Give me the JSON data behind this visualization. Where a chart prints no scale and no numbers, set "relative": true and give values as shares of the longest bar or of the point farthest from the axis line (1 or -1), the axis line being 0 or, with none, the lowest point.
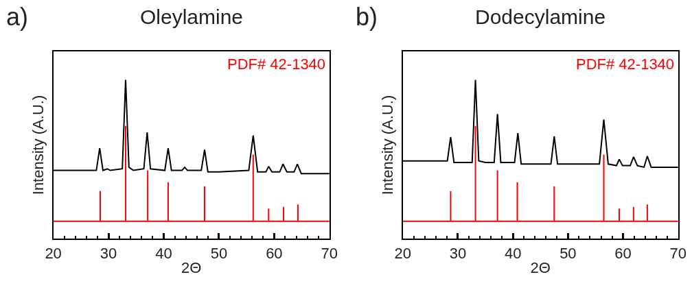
{
  "chart_data": [
    {
      "type": "line",
      "title": "Oleylamine",
      "annotations": [
        "a)"
      ],
      "xlabel": "2Θ",
      "ylabel": "Intensity (A.U.)",
      "relative": true,
      "tick_labels": "x",
      "xlim": [
        20,
        70
      ],
      "xticks": [
        20,
        {
          "value": 22,
          "label": null
        },
        {
          "value": 24,
          "label": null
        },
        {
          "value": 26,
          "label": null
        },
        {
          "value": 28,
          "label": null
        },
        30,
        {
          "value": 32,
          "label": null
        },
        {
          "value": 34,
          "label": null
        },
        {
          "value": 36,
          "label": null
        },
        {
          "value": 38,
          "label": null
        },
        40,
        {
          "value": 42,
          "label": null
        },
        {
          "value": 44,
          "label": null
        },
        {
          "value": 46,
          "label": null
        },
        {
          "value": 48,
          "label": null
        },
        50,
        {
          "value": 52,
          "label": null
        },
        {
          "value": 54,
          "label": null
        },
        {
          "value": 56,
          "label": null
        },
        {
          "value": 58,
          "label": null
        },
        60,
        {
          "value": 62,
          "label": null
        },
        {
          "value": 64,
          "label": null
        },
        {
          "value": 66,
          "label": null
        },
        {
          "value": 68,
          "label": null
        },
        70
      ],
      "series": [
        {
          "color": "#000000",
          "x": [
            20,
            27.8,
            28.4,
            29.0,
            29.8,
            30.3,
            32.5,
            33.1,
            33.7,
            34.5,
            36.4,
            37.0,
            37.6,
            40.2,
            40.8,
            41.4,
            43.3,
            43.8,
            44.3,
            46.8,
            47.4,
            48.0,
            50,
            55.4,
            56.2,
            57.0,
            58.5,
            59.0,
            59.6,
            61.0,
            61.6,
            62.3,
            63.6,
            64.2,
            64.9,
            70
          ],
          "values": [
            0.43,
            0.43,
            0.57,
            0.43,
            0.44,
            0.43,
            0.44,
            1.0,
            0.45,
            0.43,
            0.44,
            0.67,
            0.44,
            0.43,
            0.57,
            0.43,
            0.43,
            0.45,
            0.43,
            0.43,
            0.56,
            0.42,
            0.42,
            0.43,
            0.65,
            0.42,
            0.42,
            0.455,
            0.42,
            0.42,
            0.47,
            0.42,
            0.42,
            0.47,
            0.41,
            0.41
          ]
        },
        {
          "name": "PDF# 42-1340",
          "color": "#ff0000",
          "x": [
            20,
            28.5,
            28.5,
            28.5,
            33.1,
            33.1,
            33.1,
            37.1,
            37.1,
            37.1,
            40.8,
            40.8,
            40.8,
            47.4,
            47.4,
            47.4,
            56.2,
            56.2,
            56.2,
            59.0,
            59.0,
            59.0,
            61.7,
            61.7,
            61.7,
            64.3,
            64.3,
            64.3,
            70
          ],
          "values": [
            0.11,
            0.11,
            0.3,
            0.11,
            0.11,
            0.71,
            0.11,
            0.11,
            0.43,
            0.11,
            0.11,
            0.355,
            0.11,
            0.11,
            0.33,
            0.11,
            0.11,
            0.53,
            0.11,
            0.11,
            0.19,
            0.11,
            0.11,
            0.2,
            0.11,
            0.11,
            0.215,
            0.11,
            0.11
          ]
        }
      ]
    },
    {
      "type": "line",
      "title": "Dodecylamine",
      "annotations": [
        "b)"
      ],
      "xlabel": "2Θ",
      "ylabel": "Intensity (A.U.)",
      "relative": true,
      "tick_labels": "x",
      "xlim": [
        20,
        70
      ],
      "xticks": [
        20,
        {
          "value": 22,
          "label": null
        },
        {
          "value": 24,
          "label": null
        },
        {
          "value": 26,
          "label": null
        },
        {
          "value": 28,
          "label": null
        },
        30,
        {
          "value": 32,
          "label": null
        },
        {
          "value": 34,
          "label": null
        },
        {
          "value": 36,
          "label": null
        },
        {
          "value": 38,
          "label": null
        },
        40,
        {
          "value": 42,
          "label": null
        },
        {
          "value": 44,
          "label": null
        },
        {
          "value": 46,
          "label": null
        },
        {
          "value": 48,
          "label": null
        },
        50,
        {
          "value": 52,
          "label": null
        },
        {
          "value": 54,
          "label": null
        },
        {
          "value": 56,
          "label": null
        },
        {
          "value": 58,
          "label": null
        },
        60,
        {
          "value": 62,
          "label": null
        },
        {
          "value": 64,
          "label": null
        },
        {
          "value": 66,
          "label": null
        },
        {
          "value": 68,
          "label": null
        },
        70
      ],
      "series": [
        {
          "color": "#000000",
          "x": [
            20,
            25,
            28.1,
            28.7,
            29.3,
            31,
            32.6,
            33.2,
            33.8,
            35,
            36.6,
            37.2,
            37.8,
            40.3,
            40.9,
            41.5,
            46.9,
            47.5,
            48.1,
            50,
            55.7,
            56.5,
            57.3,
            58.8,
            59.3,
            59.9,
            61.3,
            61.9,
            62.6,
            63.8,
            64.4,
            65.1,
            70
          ],
          "values": [
            0.49,
            0.49,
            0.49,
            0.64,
            0.48,
            0.48,
            0.48,
            1.0,
            0.49,
            0.48,
            0.48,
            0.785,
            0.48,
            0.48,
            0.665,
            0.47,
            0.47,
            0.645,
            0.47,
            0.47,
            0.47,
            0.75,
            0.47,
            0.46,
            0.5,
            0.46,
            0.46,
            0.515,
            0.46,
            0.45,
            0.52,
            0.45,
            0.45
          ]
        },
        {
          "name": "PDF# 42-1340",
          "color": "#ff0000",
          "x": [
            20,
            28.7,
            28.7,
            28.7,
            33.2,
            33.2,
            33.2,
            37.2,
            37.2,
            37.2,
            40.8,
            40.8,
            40.8,
            47.5,
            47.5,
            47.5,
            56.5,
            56.5,
            56.5,
            59.3,
            59.3,
            59.3,
            61.9,
            61.9,
            61.9,
            64.4,
            64.4,
            64.4,
            70
          ],
          "values": [
            0.11,
            0.11,
            0.3,
            0.11,
            0.11,
            0.71,
            0.11,
            0.11,
            0.43,
            0.11,
            0.11,
            0.355,
            0.11,
            0.11,
            0.33,
            0.11,
            0.11,
            0.53,
            0.11,
            0.11,
            0.19,
            0.11,
            0.11,
            0.2,
            0.11,
            0.11,
            0.215,
            0.11,
            0.11
          ]
        }
      ]
    }
  ]
}
